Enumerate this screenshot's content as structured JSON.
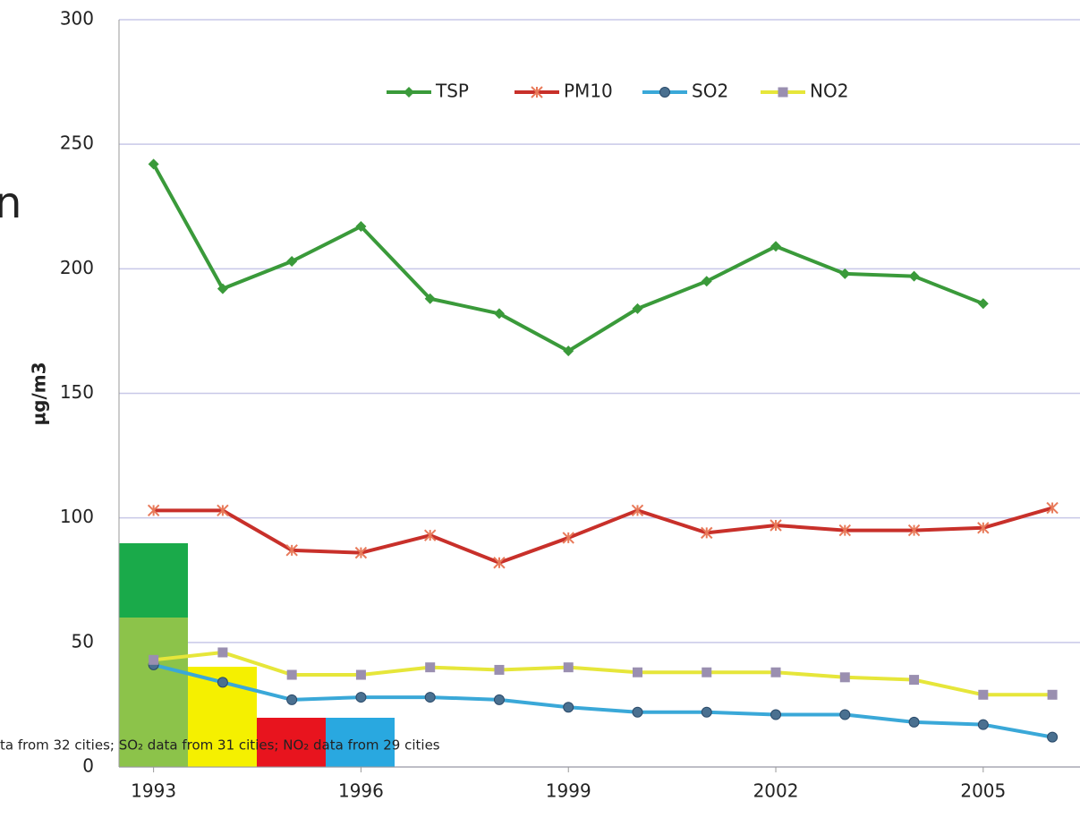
{
  "chart_data": {
    "type": "line",
    "y_label": "µg/m3",
    "x": [
      1993,
      1994,
      1995,
      1996,
      1997,
      1998,
      1999,
      2000,
      2001,
      2002,
      2003,
      2004,
      2005,
      2006
    ],
    "series": [
      {
        "name": "TSP",
        "color": "#3a9a3a",
        "marker": "diamond",
        "values": [
          242,
          192,
          203,
          217,
          188,
          182,
          167,
          184,
          195,
          209,
          198,
          197,
          186,
          null
        ]
      },
      {
        "name": "PM10",
        "color": "#c8302a",
        "marker": "star",
        "values": [
          103,
          103,
          87,
          86,
          93,
          82,
          92,
          103,
          94,
          97,
          95,
          95,
          96,
          104
        ]
      },
      {
        "name": "SO2",
        "color": "#3aa8d8",
        "marker": "circle",
        "values": [
          41,
          34,
          27,
          28,
          28,
          27,
          24,
          22,
          22,
          21,
          21,
          18,
          17,
          12
        ]
      },
      {
        "name": "NO2",
        "color": "#e6e63a",
        "marker": "square",
        "values": [
          43,
          46,
          37,
          37,
          40,
          39,
          40,
          38,
          38,
          38,
          36,
          35,
          29,
          29
        ]
      }
    ],
    "xlim": [
      1992.5,
      2006.4
    ],
    "xticks": [
      1993,
      1996,
      1999,
      2002,
      2005
    ],
    "ylim": [
      0,
      300
    ],
    "yticks": [
      0,
      50,
      100,
      150,
      200,
      250,
      300
    ],
    "grid": true,
    "legend": "top",
    "annotations": [
      "ta from 32 cities; SO₂ data from 31 cities; NO₂ data from 29 cities",
      "n"
    ]
  }
}
